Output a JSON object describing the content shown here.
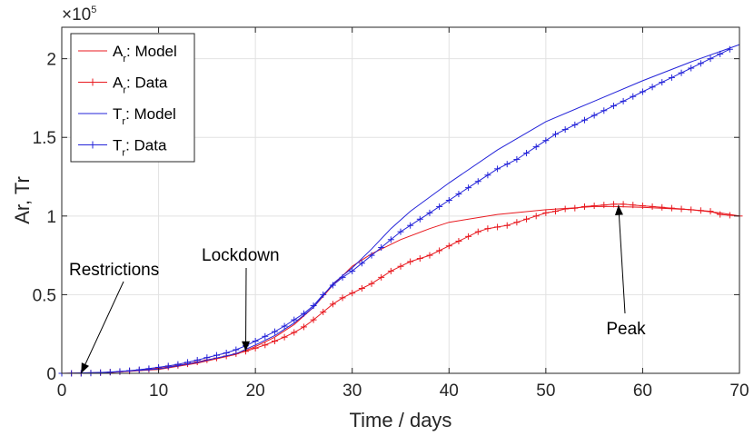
{
  "chart_data": {
    "type": "line",
    "xlabel": "Time / days",
    "ylabel": "Ar, Tr",
    "xlim": [
      0,
      70
    ],
    "ylim": [
      0,
      220000
    ],
    "x_ticks": [
      0,
      10,
      20,
      30,
      40,
      50,
      60,
      70
    ],
    "x_tick_labels": [
      "0",
      "10",
      "20",
      "30",
      "40",
      "50",
      "60",
      "70"
    ],
    "y_ticks": [
      0,
      50000,
      100000,
      150000,
      200000
    ],
    "y_tick_labels": [
      "0",
      "0.5",
      "1",
      "1.5",
      "2"
    ],
    "y_exponent_times": "×10",
    "y_exponent_power": "5",
    "grid": true,
    "legend_position": "top-left",
    "legend": [
      {
        "base": "A",
        "sub": "r",
        "suffix": ": Model",
        "color": "#e8191f",
        "marker": false
      },
      {
        "base": "A",
        "sub": "r",
        "suffix": ": Data",
        "color": "#e8191f",
        "marker": true
      },
      {
        "base": "T",
        "sub": "r",
        "suffix": ": Model",
        "color": "#2323d9",
        "marker": false
      },
      {
        "base": "T",
        "sub": "r",
        "suffix": ": Data",
        "color": "#2323d9",
        "marker": true
      }
    ],
    "series": [
      {
        "key": "ar_model",
        "color": "#e8191f",
        "marker": false,
        "x": [
          0,
          5,
          10,
          14,
          18,
          20,
          22,
          24,
          26,
          28,
          30,
          32,
          35,
          38,
          40,
          45,
          50,
          55,
          57,
          60,
          65,
          68,
          70
        ],
        "y": [
          0,
          600,
          2500,
          6500,
          12000,
          17000,
          23000,
          31000,
          42000,
          56000,
          68000,
          76000,
          85000,
          92000,
          96000,
          101000,
          104000,
          106000,
          106000,
          105500,
          104000,
          102000,
          100000
        ]
      },
      {
        "key": "ar_data",
        "color": "#e8191f",
        "marker": true,
        "x": [
          0,
          1,
          2,
          3,
          4,
          5,
          6,
          7,
          8,
          9,
          10,
          11,
          12,
          13,
          14,
          15,
          16,
          17,
          18,
          19,
          20,
          21,
          22,
          23,
          24,
          25,
          26,
          27,
          28,
          29,
          30,
          31,
          32,
          33,
          34,
          35,
          36,
          37,
          38,
          39,
          40,
          41,
          42,
          43,
          44,
          45,
          46,
          47,
          48,
          49,
          50,
          51,
          52,
          53,
          54,
          55,
          56,
          57,
          58,
          59,
          60,
          61,
          62,
          63,
          64,
          65,
          66,
          67,
          68,
          69,
          70
        ],
        "y": [
          0,
          0,
          0,
          200,
          400,
          700,
          1000,
          1400,
          1900,
          2500,
          3200,
          4000,
          5000,
          6000,
          7200,
          8500,
          9700,
          11000,
          12500,
          14000,
          16000,
          18000,
          20500,
          23000,
          26000,
          29500,
          34000,
          39000,
          44000,
          48000,
          51000,
          54000,
          57000,
          61000,
          65000,
          68000,
          71000,
          73000,
          75000,
          78000,
          81000,
          84000,
          87000,
          90000,
          92000,
          93000,
          94000,
          96000,
          98000,
          100000,
          102000,
          103000,
          104500,
          105000,
          106000,
          106500,
          107000,
          107500,
          107500,
          107000,
          106500,
          106000,
          105500,
          105000,
          104500,
          104000,
          103500,
          103000,
          101000,
          100500,
          100000
        ]
      },
      {
        "key": "tr_model",
        "color": "#2323d9",
        "marker": false,
        "x": [
          0,
          5,
          10,
          14,
          18,
          20,
          22,
          24,
          26,
          28,
          30,
          32,
          34,
          36,
          38,
          40,
          45,
          50,
          55,
          60,
          65,
          70
        ],
        "y": [
          0,
          700,
          2800,
          7000,
          12500,
          18000,
          24000,
          32000,
          42000,
          57000,
          67000,
          79000,
          92000,
          103000,
          112000,
          121000,
          142000,
          160000,
          173000,
          186000,
          198000,
          209000
        ]
      },
      {
        "key": "tr_data",
        "color": "#2323d9",
        "marker": true,
        "x": [
          0,
          1,
          2,
          3,
          4,
          5,
          6,
          7,
          8,
          9,
          10,
          11,
          12,
          13,
          14,
          15,
          16,
          17,
          18,
          19,
          20,
          21,
          22,
          23,
          24,
          25,
          26,
          27,
          28,
          29,
          30,
          31,
          32,
          33,
          34,
          35,
          36,
          37,
          38,
          39,
          40,
          41,
          42,
          43,
          44,
          45,
          46,
          47,
          48,
          49,
          50,
          51,
          52,
          53,
          54,
          55,
          56,
          57,
          58,
          59,
          60,
          61,
          62,
          63,
          64,
          65,
          66,
          67,
          68,
          69
        ],
        "y": [
          0,
          0,
          0,
          200,
          500,
          800,
          1200,
          1700,
          2300,
          3000,
          3800,
          4700,
          5700,
          7000,
          8400,
          10000,
          11500,
          13000,
          15000,
          17500,
          20500,
          23500,
          26500,
          30000,
          34000,
          38000,
          43000,
          50000,
          56000,
          61000,
          65000,
          70000,
          75000,
          80000,
          85000,
          90000,
          94000,
          98000,
          102000,
          106000,
          110000,
          114000,
          118000,
          122000,
          126000,
          130000,
          133000,
          136000,
          140000,
          144000,
          148000,
          152000,
          155000,
          158000,
          161000,
          164000,
          167000,
          170000,
          173000,
          176000,
          179000,
          182000,
          185000,
          188000,
          191000,
          194000,
          197000,
          200000,
          203000,
          206000
        ]
      }
    ],
    "annotations": [
      {
        "key": "restrictions",
        "text": "Restrictions",
        "x": 2,
        "y": 0
      },
      {
        "key": "lockdown",
        "text": "Lockdown",
        "x": 19,
        "y": 14000
      },
      {
        "key": "peak",
        "text": "Peak",
        "x": 57.5,
        "y": 107000
      }
    ]
  }
}
